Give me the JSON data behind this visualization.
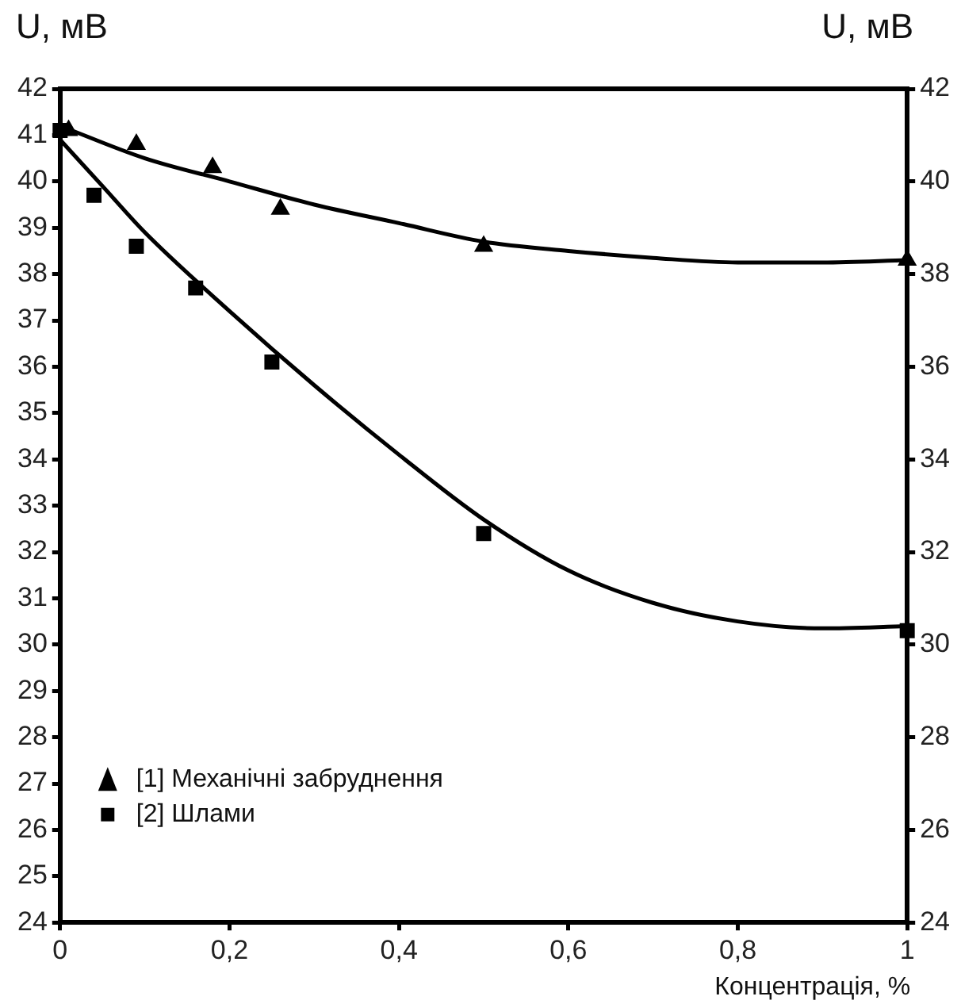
{
  "chart_data": {
    "type": "scatter",
    "xlabel": "Концентрація, %",
    "ylabel": "U, мВ",
    "y2label": "U, мВ",
    "xlim": [
      0,
      1
    ],
    "xticks": [
      0,
      {
        "value": 0.2,
        "label": "0,2"
      },
      {
        "value": 0.4,
        "label": "0,4"
      },
      {
        "value": 0.6,
        "label": "0,6"
      },
      {
        "value": 0.8,
        "label": "0,8"
      },
      1
    ],
    "ylim": [
      24,
      42
    ],
    "yticks": [
      24,
      25,
      26,
      27,
      28,
      29,
      30,
      31,
      32,
      33,
      34,
      35,
      36,
      37,
      38,
      39,
      40,
      41,
      42
    ],
    "y2lim": [
      24,
      42
    ],
    "y2ticks": [
      24,
      26,
      28,
      30,
      32,
      34,
      36,
      38,
      40,
      42
    ],
    "grid": false,
    "legend": "bottom left",
    "series": [
      {
        "name": "[1] Механічні забруднення",
        "marker": "triangle",
        "color": "#000000",
        "x": [
          0.01,
          0.09,
          0.18,
          0.26,
          0.5,
          1
        ],
        "values": [
          41.1,
          40.8,
          40.3,
          39.4,
          38.6,
          38.3
        ]
      },
      {
        "name": "[2] Шлами",
        "marker": "square",
        "color": "#000000",
        "x": [
          0,
          0.04,
          0.09,
          0.16,
          0.25,
          0.5,
          1
        ],
        "values": [
          41.1,
          39.7,
          38.6,
          37.7,
          36.1,
          32.4,
          30.3
        ]
      },
      {
        "type": "line",
        "marker": "none",
        "color": "#000000",
        "x": [
          0,
          0.1,
          0.2,
          0.3,
          0.4,
          0.5,
          0.6,
          0.7,
          0.8,
          0.9,
          1
        ],
        "values": [
          41.2,
          40.5,
          40.0,
          39.5,
          39.1,
          38.7,
          38.5,
          38.35,
          38.25,
          38.25,
          38.3
        ]
      },
      {
        "type": "line",
        "marker": "none",
        "color": "#000000",
        "x": [
          0,
          0.05,
          0.1,
          0.2,
          0.3,
          0.4,
          0.5,
          0.6,
          0.7,
          0.8,
          0.9,
          1
        ],
        "values": [
          40.9,
          39.9,
          38.9,
          37.2,
          35.6,
          34.1,
          32.7,
          31.6,
          30.9,
          30.5,
          30.35,
          30.4
        ]
      }
    ]
  }
}
